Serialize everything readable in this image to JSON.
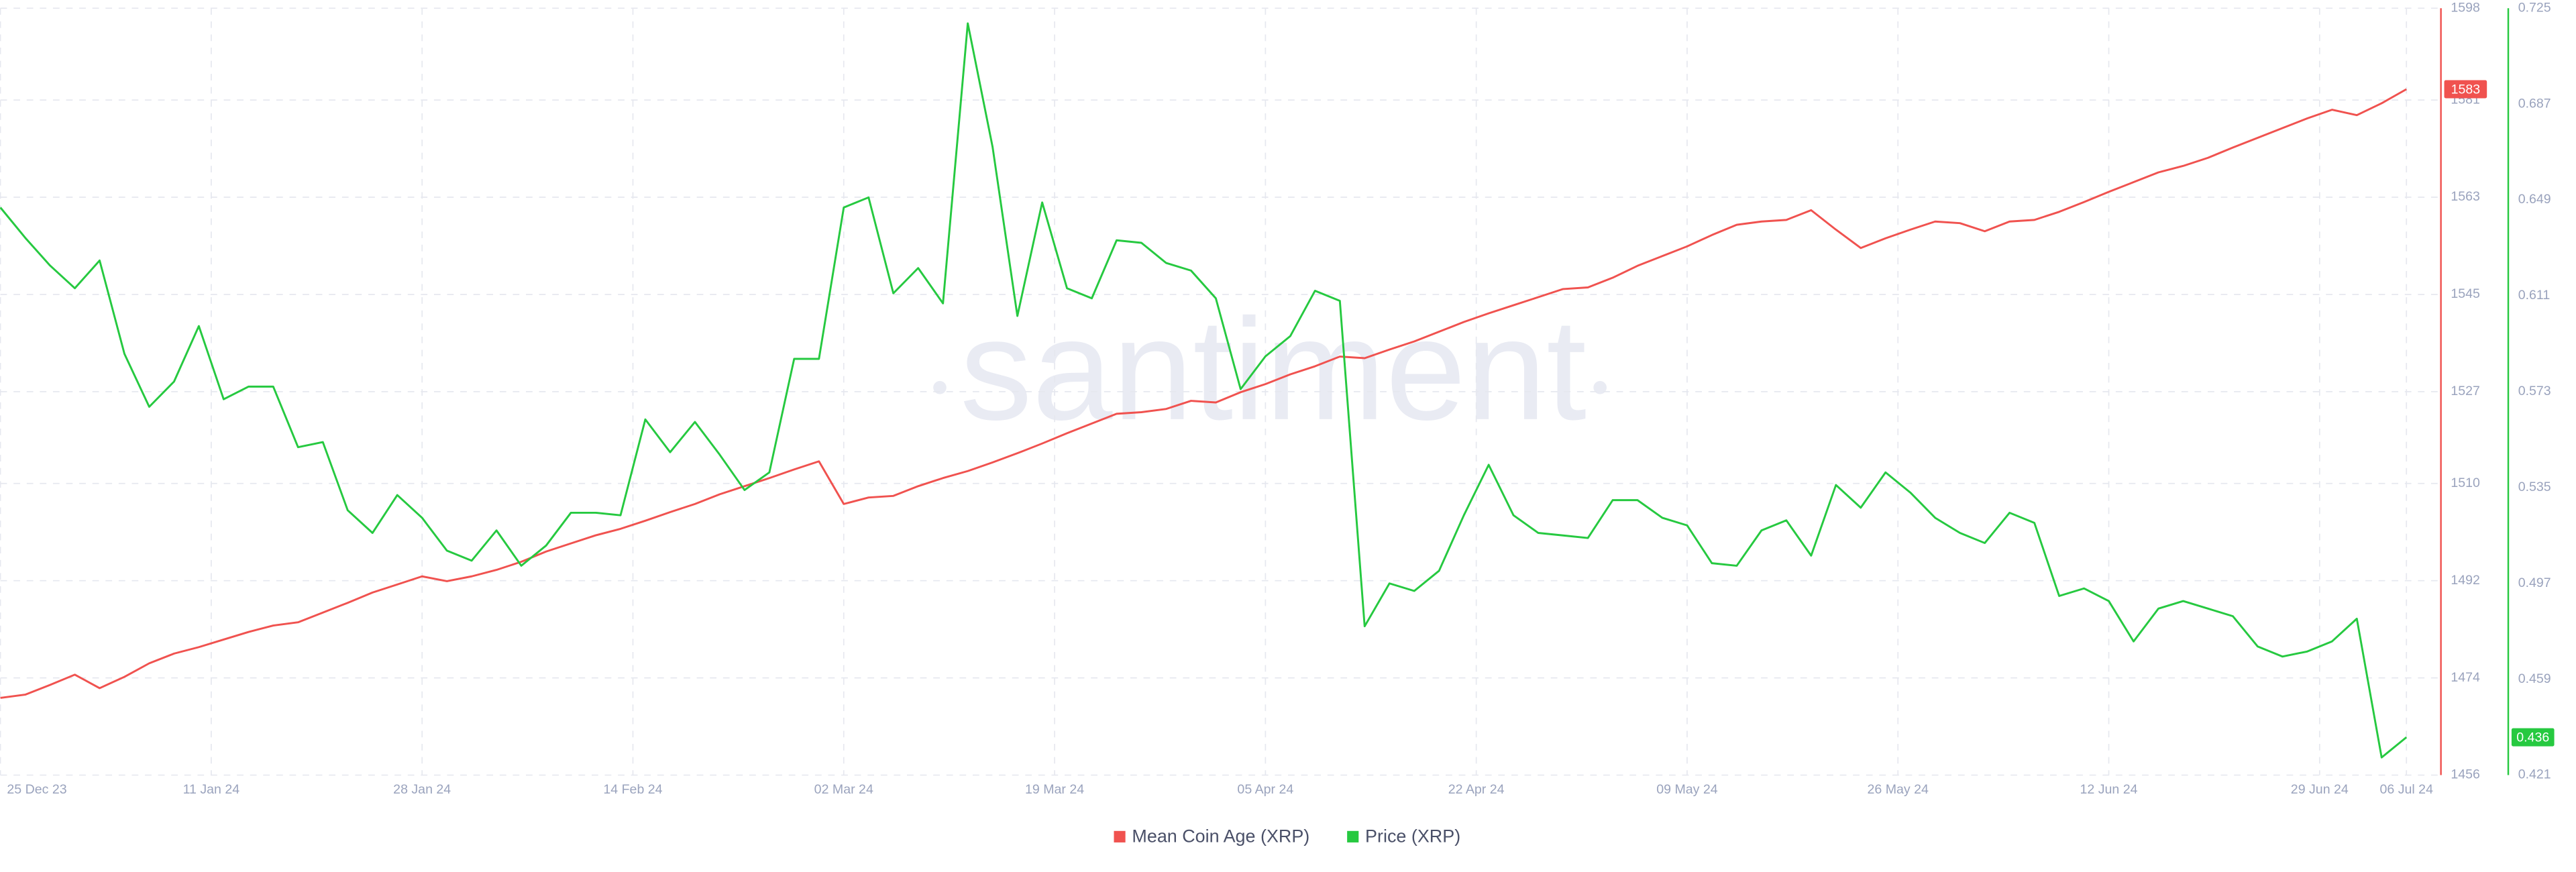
{
  "chart_data": {
    "type": "line",
    "watermark": "santiment",
    "x": [
      "2023-12-25",
      "2023-12-27",
      "2023-12-29",
      "2023-12-31",
      "2024-01-02",
      "2024-01-04",
      "2024-01-06",
      "2024-01-08",
      "2024-01-10",
      "2024-01-12",
      "2024-01-14",
      "2024-01-16",
      "2024-01-18",
      "2024-01-20",
      "2024-01-22",
      "2024-01-24",
      "2024-01-26",
      "2024-01-28",
      "2024-01-30",
      "2024-02-01",
      "2024-02-03",
      "2024-02-05",
      "2024-02-07",
      "2024-02-09",
      "2024-02-11",
      "2024-02-13",
      "2024-02-15",
      "2024-02-17",
      "2024-02-19",
      "2024-02-21",
      "2024-02-23",
      "2024-02-25",
      "2024-02-27",
      "2024-02-29",
      "2024-03-02",
      "2024-03-04",
      "2024-03-06",
      "2024-03-08",
      "2024-03-10",
      "2024-03-12",
      "2024-03-14",
      "2024-03-16",
      "2024-03-18",
      "2024-03-20",
      "2024-03-22",
      "2024-03-24",
      "2024-03-26",
      "2024-03-28",
      "2024-03-30",
      "2024-04-01",
      "2024-04-03",
      "2024-04-05",
      "2024-04-07",
      "2024-04-09",
      "2024-04-11",
      "2024-04-13",
      "2024-04-15",
      "2024-04-17",
      "2024-04-19",
      "2024-04-21",
      "2024-04-23",
      "2024-04-25",
      "2024-04-27",
      "2024-04-29",
      "2024-05-01",
      "2024-05-03",
      "2024-05-05",
      "2024-05-07",
      "2024-05-09",
      "2024-05-11",
      "2024-05-13",
      "2024-05-15",
      "2024-05-17",
      "2024-05-19",
      "2024-05-21",
      "2024-05-23",
      "2024-05-25",
      "2024-05-27",
      "2024-05-29",
      "2024-05-31",
      "2024-06-02",
      "2024-06-04",
      "2024-06-06",
      "2024-06-08",
      "2024-06-10",
      "2024-06-12",
      "2024-06-14",
      "2024-06-16",
      "2024-06-18",
      "2024-06-20",
      "2024-06-22",
      "2024-06-24",
      "2024-06-26",
      "2024-06-28",
      "2024-06-30",
      "2024-07-02",
      "2024-07-04",
      "2024-07-06"
    ],
    "xticks": [
      {
        "value": "2023-12-25",
        "label": "25 Dec 23"
      },
      {
        "value": "2024-01-11",
        "label": "11 Jan 24"
      },
      {
        "value": "2024-01-28",
        "label": "28 Jan 24"
      },
      {
        "value": "2024-02-14",
        "label": "14 Feb 24"
      },
      {
        "value": "2024-03-02",
        "label": "02 Mar 24"
      },
      {
        "value": "2024-03-19",
        "label": "19 Mar 24"
      },
      {
        "value": "2024-04-05",
        "label": "05 Apr 24"
      },
      {
        "value": "2024-04-22",
        "label": "22 Apr 24"
      },
      {
        "value": "2024-05-09",
        "label": "09 May 24"
      },
      {
        "value": "2024-05-26",
        "label": "26 May 24"
      },
      {
        "value": "2024-06-12",
        "label": "12 Jun 24"
      },
      {
        "value": "2024-06-29",
        "label": "29 Jun 24"
      },
      {
        "value": "2024-07-06",
        "label": "06 Jul 24"
      }
    ],
    "ylim": [
      1456,
      1598
    ],
    "yticks": [
      1456,
      1474,
      1492,
      1510,
      1527,
      1545,
      1563,
      1581,
      1598
    ],
    "y2lim": [
      0.421,
      0.725
    ],
    "y2ticks": [
      0.421,
      0.459,
      0.497,
      0.535,
      0.573,
      0.611,
      0.649,
      0.687,
      0.725
    ],
    "grid": true,
    "series": [
      {
        "name": "Mean Coin Age (XRP)",
        "color": "#f0524f",
        "values": [
          1470.3,
          1470.9,
          1472.7,
          1474.6,
          1472.1,
          1474.2,
          1476.7,
          1478.5,
          1479.7,
          1481.1,
          1482.5,
          1483.7,
          1484.3,
          1486.1,
          1487.9,
          1489.8,
          1491.3,
          1492.8,
          1491.9,
          1492.8,
          1494.0,
          1495.5,
          1497.4,
          1498.9,
          1500.4,
          1501.6,
          1503.1,
          1504.7,
          1506.2,
          1508.0,
          1509.5,
          1511.0,
          1512.6,
          1514.1,
          1506.2,
          1507.4,
          1507.7,
          1509.5,
          1511.0,
          1512.3,
          1513.9,
          1515.6,
          1517.4,
          1519.3,
          1521.1,
          1522.9,
          1523.2,
          1523.8,
          1525.3,
          1525.0,
          1526.9,
          1528.4,
          1530.2,
          1531.7,
          1533.5,
          1533.2,
          1534.8,
          1536.3,
          1538.1,
          1539.9,
          1541.5,
          1543.0,
          1544.5,
          1546.0,
          1546.3,
          1548.1,
          1550.3,
          1552.1,
          1553.9,
          1556.0,
          1557.9,
          1558.5,
          1558.8,
          1560.6,
          1557.0,
          1553.6,
          1555.4,
          1557.0,
          1558.5,
          1558.2,
          1556.7,
          1558.5,
          1558.8,
          1560.3,
          1562.1,
          1564.0,
          1565.8,
          1567.6,
          1568.8,
          1570.3,
          1572.2,
          1574.0,
          1575.8,
          1577.6,
          1579.2,
          1578.2,
          1580.4,
          1583
        ]
      },
      {
        "name": "Price (XRP)",
        "color": "#26c940",
        "axis": "y2",
        "values": [
          0.646,
          0.634,
          0.623,
          0.614,
          0.625,
          0.588,
          0.567,
          0.577,
          0.599,
          0.57,
          0.575,
          0.575,
          0.551,
          0.553,
          0.526,
          0.517,
          0.532,
          0.523,
          0.51,
          0.506,
          0.518,
          0.504,
          0.512,
          0.525,
          0.525,
          0.524,
          0.562,
          0.549,
          0.561,
          0.548,
          0.534,
          0.541,
          0.586,
          0.586,
          0.646,
          0.65,
          0.612,
          0.622,
          0.608,
          0.719,
          0.67,
          0.603,
          0.648,
          0.614,
          0.61,
          0.633,
          0.632,
          0.624,
          0.621,
          0.61,
          0.574,
          0.587,
          0.595,
          0.613,
          0.609,
          0.48,
          0.497,
          0.494,
          0.502,
          0.524,
          0.544,
          0.524,
          0.517,
          0.516,
          0.515,
          0.53,
          0.53,
          0.523,
          0.52,
          0.505,
          0.504,
          0.518,
          0.522,
          0.508,
          0.536,
          0.527,
          0.541,
          0.533,
          0.523,
          0.517,
          0.513,
          0.525,
          0.521,
          0.492,
          0.495,
          0.49,
          0.474,
          0.487,
          0.49,
          0.487,
          0.484,
          0.472,
          0.468,
          0.47,
          0.474,
          0.483,
          0.428,
          0.436
        ]
      }
    ]
  }
}
